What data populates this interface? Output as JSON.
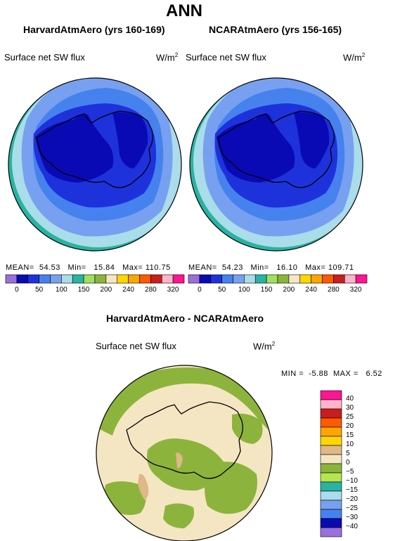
{
  "figure": {
    "title": "ANN",
    "units": "W/m",
    "units_exponent": "2"
  },
  "panels": [
    {
      "model": "HarvardAtmAero (yrs 160-169)",
      "variable": "Surface net SW flux",
      "mean_label": "MEAN=",
      "mean": "54.53",
      "min_label": "Min=",
      "min": "15.84",
      "max_label": "Max=",
      "max": "110.75"
    },
    {
      "model": "NCARAtmAero (yrs 156-165)",
      "variable": "Surface net SW flux",
      "mean_label": "MEAN=",
      "mean": "54.23",
      "min_label": "Min=",
      "min": "16.10",
      "max_label": "Max=",
      "max": "109.71"
    }
  ],
  "difference": {
    "title": "HarvardAtmAero - NCARAtmAero",
    "variable": "Surface net SW flux",
    "min_label": "MIN =",
    "min": "-5.88",
    "max_label": "MAX =",
    "max": "6.52"
  },
  "colorbar_top": {
    "tick_labels": [
      "0",
      "50",
      "100",
      "150",
      "200",
      "240",
      "280",
      "320"
    ],
    "colors": [
      "#9b6fd8",
      "#0a0ab4",
      "#1e32dc",
      "#4682ee",
      "#78a0f0",
      "#aadcea",
      "#28b4a0",
      "#a0e060",
      "#8cb43c",
      "#f5e6c3",
      "#ffd700",
      "#ffa500",
      "#ff5a00",
      "#c81e1e",
      "#ffb4c8",
      "#ff1493"
    ]
  },
  "colorbar_diff": {
    "tick_labels": [
      "40",
      "30",
      "25",
      "20",
      "15",
      "10",
      "5",
      "0",
      "−5",
      "−10",
      "−15",
      "−20",
      "−25",
      "−30",
      "−40"
    ],
    "colors": [
      "#ff1493",
      "#ffb4c8",
      "#c81e1e",
      "#ff5a00",
      "#ffa500",
      "#ffd700",
      "#deb887",
      "#f5e6c3",
      "#8cb43c",
      "#b4e650",
      "#28b4a0",
      "#aadcea",
      "#78a0f0",
      "#4682ee",
      "#0a0ab4",
      "#9b6fd8"
    ]
  },
  "map_colors": {
    "outer": "#28b4a0",
    "ring1": "#aadcea",
    "ring2": "#78a0f0",
    "ring3": "#4682ee",
    "ring4": "#1e32dc",
    "core": "#0a0ab4",
    "diff_base": "#f5e6c3",
    "diff_green": "#8cb43c",
    "diff_tan": "#deb887"
  }
}
